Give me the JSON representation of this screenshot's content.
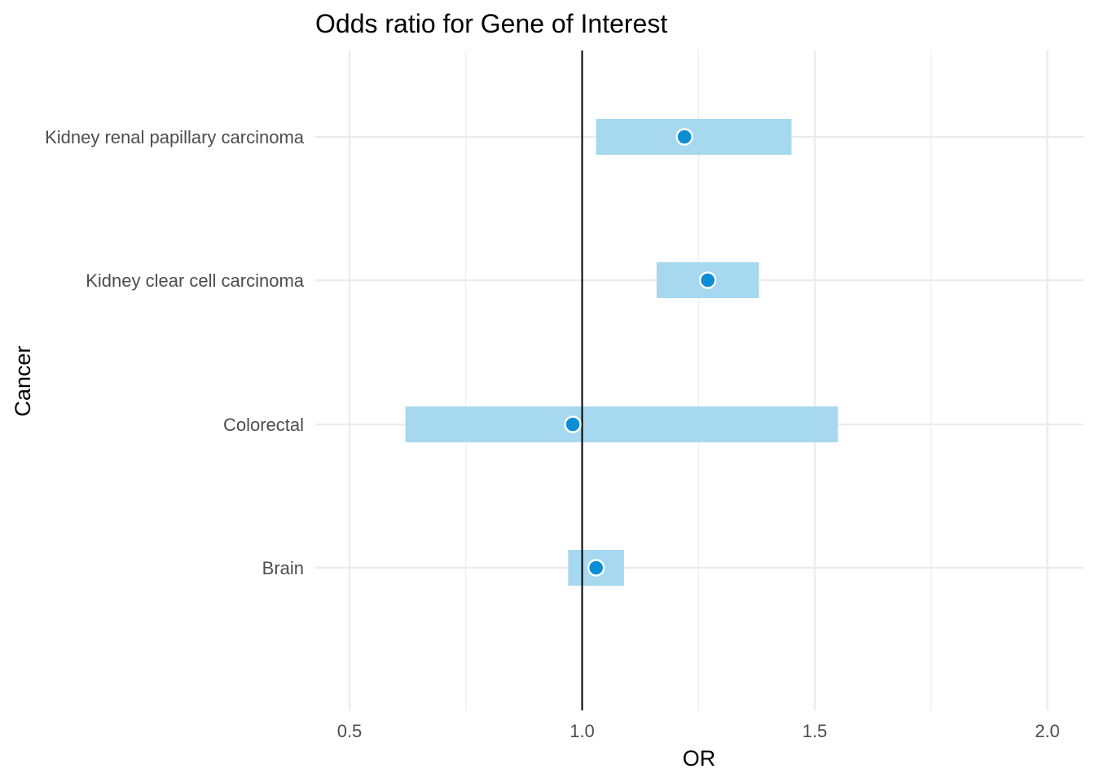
{
  "chart_data": {
    "type": "forest",
    "title": "Odds ratio for Gene of Interest",
    "xlabel": "OR",
    "ylabel": "Cancer",
    "xlim": [
      0.45,
      2.07
    ],
    "x_ticks": [
      0.5,
      1.0,
      1.5,
      2.0
    ],
    "x_tick_labels": [
      "0.5",
      "1.0",
      "1.5",
      "2.0"
    ],
    "reference_line": 1.0,
    "categories": [
      "Kidney renal papillary carcinoma",
      "Kidney clear cell carcinoma",
      "Colorectal",
      "Brain"
    ],
    "estimates": [
      1.22,
      1.27,
      0.98,
      1.03
    ],
    "ci_lower": [
      1.03,
      1.16,
      0.62,
      0.97
    ],
    "ci_upper": [
      1.45,
      1.38,
      1.55,
      1.09
    ],
    "grid": true,
    "colors": {
      "ci_bar": "#a6d8ef",
      "point": "#0b8ed6",
      "point_outline": "#ffffff",
      "reference_line": "#000000",
      "grid": "#ebebeb"
    }
  }
}
